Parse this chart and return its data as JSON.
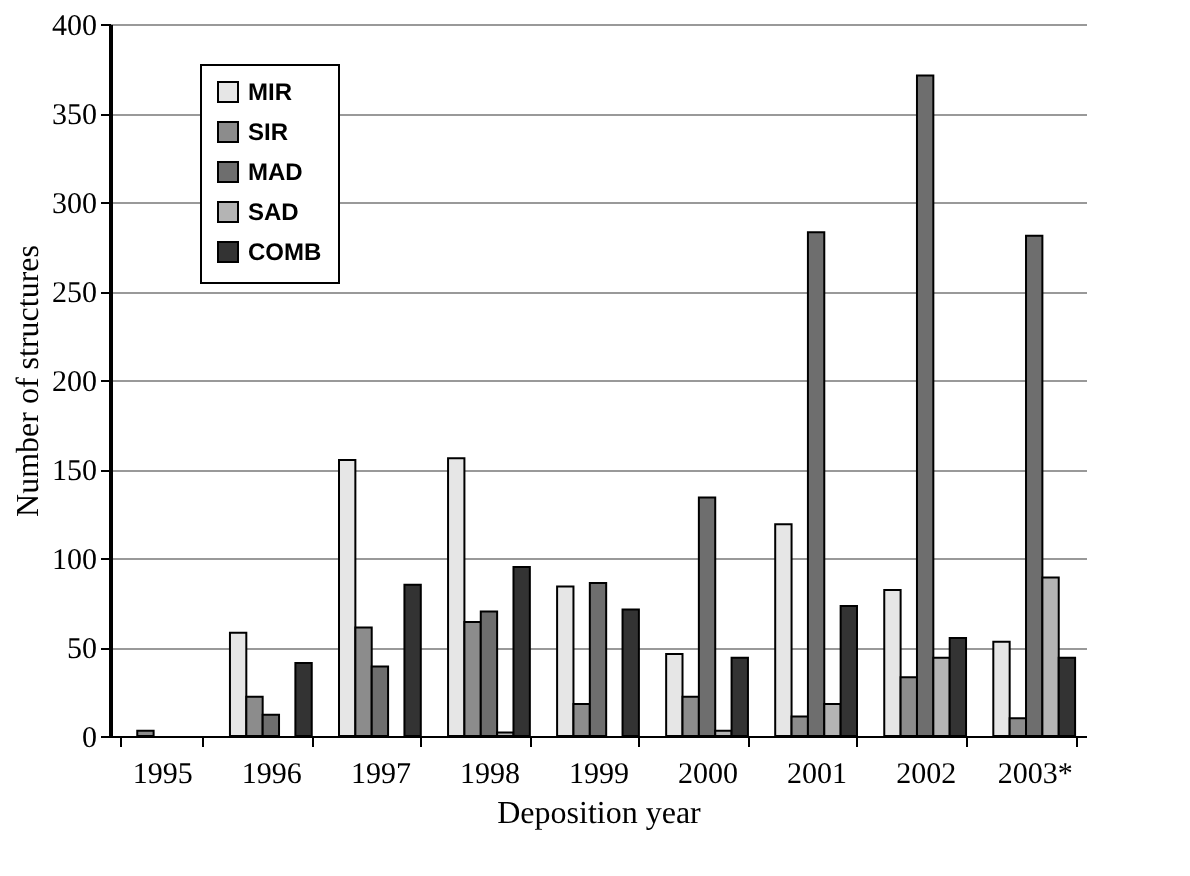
{
  "chart_data": {
    "type": "bar",
    "xlabel": "Deposition year",
    "ylabel": "Number of structures",
    "categories": [
      "1995",
      "1996",
      "1997",
      "1998",
      "1999",
      "2000",
      "2001",
      "2002",
      "2003*"
    ],
    "series": [
      {
        "name": "MIR",
        "color": "#e6e6e6",
        "values": [
          0,
          58,
          155,
          156,
          84,
          46,
          119,
          82,
          53
        ]
      },
      {
        "name": "SIR",
        "color": "#8c8c8c",
        "values": [
          3,
          22,
          61,
          64,
          18,
          22,
          11,
          33,
          10
        ]
      },
      {
        "name": "MAD",
        "color": "#6e6e6e",
        "values": [
          0,
          12,
          39,
          70,
          86,
          134,
          283,
          371,
          281
        ]
      },
      {
        "name": "SAD",
        "color": "#b4b4b4",
        "values": [
          0,
          0,
          0,
          2,
          0,
          3,
          18,
          44,
          89
        ]
      },
      {
        "name": "COMB",
        "color": "#333333",
        "values": [
          0,
          41,
          85,
          95,
          71,
          44,
          73,
          55,
          44
        ]
      }
    ],
    "ylim": [
      0,
      400
    ],
    "yticks": [
      0,
      50,
      100,
      150,
      200,
      250,
      300,
      350,
      400
    ],
    "grid": "y",
    "legend": "top left"
  }
}
